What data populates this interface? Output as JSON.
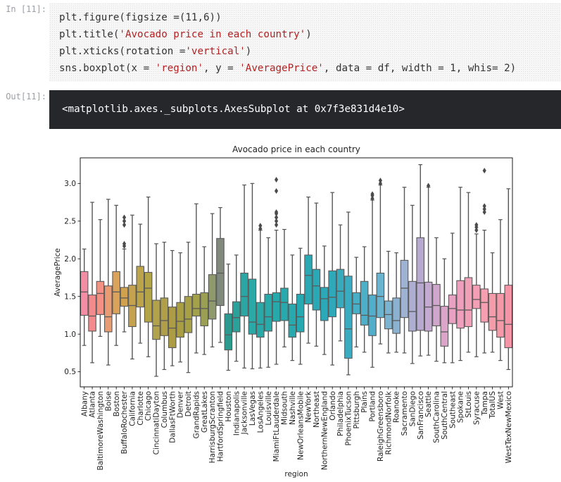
{
  "notebook": {
    "in_prompt": "In [11]:",
    "out_prompt": "Out[11]:",
    "code_lines": [
      "plt.figure(figsize =(11,6))",
      "plt.title('Avocado price in each country')",
      "plt.xticks(rotation ='vertical')",
      "sns.boxplot(x = 'region', y = 'AveragePrice', data = df, width = 1, whis= 2)"
    ],
    "output_text": "<matplotlib.axes._subplots.AxesSubplot at 0x7f3e831d4e10>"
  },
  "chart_data": {
    "type": "box",
    "title": "Avocado price in each country",
    "xlabel": "region",
    "ylabel": "AveragePrice",
    "ylim": [
      0.3,
      3.34
    ],
    "yticks": [
      0.5,
      1.0,
      1.5,
      2.0,
      2.5,
      3.0
    ],
    "grid": false,
    "categories": [
      "Albany",
      "Atlanta",
      "BaltimoreWashington",
      "Boise",
      "Boston",
      "BuffaloRochester",
      "California",
      "Charlotte",
      "Chicago",
      "CincinnatiDayton",
      "Columbus",
      "DallasFtWorth",
      "Denver",
      "Detroit",
      "GrandRapids",
      "GreatLakes",
      "HarrisburgScranton",
      "HartfordSpringfield",
      "Houston",
      "Indianapolis",
      "Jacksonville",
      "LasVegas",
      "LosAngeles",
      "Louisville",
      "MiamiFtLauderdale",
      "Midsouth",
      "Nashville",
      "NewOrleansMobile",
      "NewYork",
      "Northeast",
      "NorthernNewEngland",
      "Orlando",
      "Philadelphia",
      "PhoenixTucson",
      "Pittsburgh",
      "Plains",
      "Portland",
      "RaleighGreensboro",
      "RichmondNorfolk",
      "Roanoke",
      "Sacramento",
      "SanDiego",
      "SanFrancisco",
      "Seattle",
      "SouthCarolina",
      "SouthCentral",
      "Southeast",
      "Spokane",
      "StLouis",
      "Syracuse",
      "Tampa",
      "TotalUS",
      "West",
      "WestTexNewMexico"
    ],
    "colors": [
      "#f48ca4",
      "#f58a8d",
      "#f39185",
      "#e99b73",
      "#dba25a",
      "#d0a24f",
      "#c5a24e",
      "#bca44b",
      "#b3a448",
      "#b2a24b",
      "#b09f48",
      "#ad9c46",
      "#aa9e43",
      "#a8a044",
      "#a3a14a",
      "#9b9f54",
      "#8f9a6c",
      "#81897c",
      "#2c9a8e",
      "#28a29a",
      "#2aa7a4",
      "#2aa9a6",
      "#29a8a8",
      "#28a9aa",
      "#27a9ab",
      "#27a9ad",
      "#27a9ae",
      "#26a9b0",
      "#2aa9b4",
      "#29a8b6",
      "#2ca9b8",
      "#2ea9ba",
      "#35abbd",
      "#3aacc2",
      "#47b0c6",
      "#4cb0c9",
      "#52afcc",
      "#6ab4cf",
      "#7cb3d1",
      "#8ab2d0",
      "#9fb2d2",
      "#aeaed2",
      "#b7a9d0",
      "#c4a9d0",
      "#d0a6cd",
      "#dca4c8",
      "#e8a1c2",
      "#ef9fbc",
      "#f29fb8",
      "#f49fb5",
      "#f59fb1",
      "#f59cab",
      "#f598a7",
      "#f595a8"
    ],
    "series": [
      {
        "name": "Albany",
        "whislo": 0.85,
        "q1": 1.25,
        "median": 1.56,
        "q3": 1.83,
        "whishi": 2.13,
        "fliers": []
      },
      {
        "name": "Atlanta",
        "whislo": 0.62,
        "q1": 1.04,
        "median": 1.24,
        "q3": 1.52,
        "whishi": 2.75,
        "fliers": []
      },
      {
        "name": "BaltimoreWashington",
        "whislo": 0.97,
        "q1": 1.26,
        "median": 1.54,
        "q3": 1.7,
        "whishi": 2.52,
        "fliers": []
      },
      {
        "name": "Boise",
        "whislo": 0.59,
        "q1": 1.03,
        "median": 1.23,
        "q3": 1.64,
        "whishi": 2.79,
        "fliers": []
      },
      {
        "name": "Boston",
        "whislo": 0.85,
        "q1": 1.27,
        "median": 1.56,
        "q3": 1.83,
        "whishi": 2.71,
        "fliers": []
      },
      {
        "name": "BuffaloRochester",
        "whislo": 1.03,
        "q1": 1.37,
        "median": 1.48,
        "q3": 1.62,
        "whishi": 2.13,
        "fliers": [
          2.17,
          2.2,
          2.45,
          2.5,
          2.55
        ]
      },
      {
        "name": "California",
        "whislo": 0.67,
        "q1": 1.1,
        "median": 1.38,
        "q3": 1.65,
        "whishi": 2.58,
        "fliers": []
      },
      {
        "name": "Charlotte",
        "whislo": 0.88,
        "q1": 1.36,
        "median": 1.56,
        "q3": 1.9,
        "whishi": 2.46,
        "fliers": []
      },
      {
        "name": "Chicago",
        "whislo": 0.7,
        "q1": 1.16,
        "median": 1.61,
        "q3": 1.82,
        "whishi": 2.82,
        "fliers": []
      },
      {
        "name": "CincinnatiDayton",
        "whislo": 0.44,
        "q1": 0.93,
        "median": 1.11,
        "q3": 1.45,
        "whishi": 2.2,
        "fliers": []
      },
      {
        "name": "Columbus",
        "whislo": 0.53,
        "q1": 0.98,
        "median": 1.18,
        "q3": 1.48,
        "whishi": 2.22,
        "fliers": []
      },
      {
        "name": "DallasFtWorth",
        "whislo": 0.58,
        "q1": 0.82,
        "median": 1.08,
        "q3": 1.36,
        "whishi": 2.11,
        "fliers": []
      },
      {
        "name": "Denver",
        "whislo": 0.63,
        "q1": 0.96,
        "median": 1.17,
        "q3": 1.42,
        "whishi": 2.08,
        "fliers": []
      },
      {
        "name": "Detroit",
        "whislo": 0.49,
        "q1": 1.02,
        "median": 1.2,
        "q3": 1.5,
        "whishi": 2.22,
        "fliers": []
      },
      {
        "name": "GrandRapids",
        "whislo": 0.75,
        "q1": 1.24,
        "median": 1.34,
        "q3": 1.53,
        "whishi": 2.73,
        "fliers": []
      },
      {
        "name": "GreatLakes",
        "whislo": 0.73,
        "q1": 1.11,
        "median": 1.34,
        "q3": 1.55,
        "whishi": 2.16,
        "fliers": []
      },
      {
        "name": "HarrisburgScranton",
        "whislo": 0.83,
        "q1": 1.2,
        "median": 1.44,
        "q3": 1.79,
        "whishi": 2.6,
        "fliers": []
      },
      {
        "name": "HartfordSpringfield",
        "whislo": 0.89,
        "q1": 1.38,
        "median": 1.81,
        "q3": 2.27,
        "whishi": 2.68,
        "fliers": []
      },
      {
        "name": "Houston",
        "whislo": 0.52,
        "q1": 0.79,
        "median": 0.99,
        "q3": 1.27,
        "whishi": 1.93,
        "fliers": []
      },
      {
        "name": "Indianapolis",
        "whislo": 0.64,
        "q1": 1.03,
        "median": 1.22,
        "q3": 1.43,
        "whishi": 2.05,
        "fliers": []
      },
      {
        "name": "Jacksonville",
        "whislo": 0.55,
        "q1": 1.24,
        "median": 1.5,
        "q3": 1.81,
        "whishi": 2.98,
        "fliers": []
      },
      {
        "name": "LasVegas",
        "whislo": 0.54,
        "q1": 1.0,
        "median": 1.16,
        "q3": 1.73,
        "whishi": 3.0,
        "fliers": []
      },
      {
        "name": "LosAngeles",
        "whislo": 0.55,
        "q1": 0.96,
        "median": 1.13,
        "q3": 1.42,
        "whishi": 2.38,
        "fliers": [
          2.4,
          2.44
        ]
      },
      {
        "name": "Louisville",
        "whislo": 0.56,
        "q1": 1.04,
        "median": 1.23,
        "q3": 1.53,
        "whishi": 2.28,
        "fliers": []
      },
      {
        "name": "MiamiFtLauderdale",
        "whislo": 0.6,
        "q1": 1.17,
        "median": 1.43,
        "q3": 1.55,
        "whishi": 2.38,
        "fliers": [
          2.45,
          2.5,
          2.55,
          2.6,
          2.62,
          2.9,
          3.05
        ]
      },
      {
        "name": "Midsouth",
        "whislo": 0.83,
        "q1": 1.18,
        "median": 1.42,
        "q3": 1.61,
        "whishi": 2.39,
        "fliers": []
      },
      {
        "name": "Nashville",
        "whislo": 0.65,
        "q1": 0.96,
        "median": 1.12,
        "q3": 1.4,
        "whishi": 2.05,
        "fliers": []
      },
      {
        "name": "NewOrleansMobile",
        "whislo": 0.6,
        "q1": 1.03,
        "median": 1.23,
        "q3": 1.53,
        "whishi": 2.14,
        "fliers": []
      },
      {
        "name": "NewYork",
        "whislo": 0.88,
        "q1": 1.4,
        "median": 1.78,
        "q3": 2.05,
        "whishi": 2.82,
        "fliers": []
      },
      {
        "name": "Northeast",
        "whislo": 0.84,
        "q1": 1.32,
        "median": 1.64,
        "q3": 1.86,
        "whishi": 2.74,
        "fliers": []
      },
      {
        "name": "NorthernNewEngland",
        "whislo": 0.73,
        "q1": 1.18,
        "median": 1.47,
        "q3": 1.62,
        "whishi": 2.17,
        "fliers": []
      },
      {
        "name": "Orlando",
        "whislo": 0.59,
        "q1": 1.23,
        "median": 1.49,
        "q3": 1.84,
        "whishi": 2.88,
        "fliers": []
      },
      {
        "name": "Philadelphia",
        "whislo": 0.91,
        "q1": 1.35,
        "median": 1.57,
        "q3": 1.86,
        "whishi": 2.45,
        "fliers": []
      },
      {
        "name": "PhoenixTucson",
        "whislo": 0.46,
        "q1": 0.68,
        "median": 1.07,
        "q3": 1.77,
        "whishi": 2.62,
        "fliers": []
      },
      {
        "name": "Pittsburgh",
        "whislo": 0.83,
        "q1": 1.27,
        "median": 1.4,
        "q3": 1.55,
        "whishi": 2.02,
        "fliers": []
      },
      {
        "name": "Plains",
        "whislo": 0.76,
        "q1": 1.12,
        "median": 1.25,
        "q3": 1.7,
        "whishi": 2.16,
        "fliers": []
      },
      {
        "name": "Portland",
        "whislo": 0.56,
        "q1": 0.98,
        "median": 1.24,
        "q3": 1.52,
        "whishi": 2.78,
        "fliers": [
          2.8,
          2.84,
          2.86
        ]
      },
      {
        "name": "RaleighGreensboro",
        "whislo": 0.87,
        "q1": 1.22,
        "median": 1.5,
        "q3": 1.81,
        "whishi": 2.98,
        "fliers": [
          3.0,
          3.04
        ]
      },
      {
        "name": "RichmondNorfolk",
        "whislo": 0.75,
        "q1": 1.07,
        "median": 1.26,
        "q3": 1.44,
        "whishi": 2.1,
        "fliers": []
      },
      {
        "name": "Roanoke",
        "whislo": 0.76,
        "q1": 1.01,
        "median": 1.18,
        "q3": 1.48,
        "whishi": 2.08,
        "fliers": []
      },
      {
        "name": "Sacramento",
        "whislo": 0.75,
        "q1": 1.22,
        "median": 1.61,
        "q3": 1.98,
        "whishi": 2.95,
        "fliers": []
      },
      {
        "name": "SanDiego",
        "whislo": 0.61,
        "q1": 1.04,
        "median": 1.3,
        "q3": 1.7,
        "whishi": 2.71,
        "fliers": []
      },
      {
        "name": "SanFrancisco",
        "whislo": 0.71,
        "q1": 1.05,
        "median": 1.68,
        "q3": 2.28,
        "whishi": 3.25,
        "fliers": []
      },
      {
        "name": "Seattle",
        "whislo": 0.72,
        "q1": 1.04,
        "median": 1.36,
        "q3": 1.69,
        "whishi": 2.95,
        "fliers": [
          2.97
        ]
      },
      {
        "name": "SouthCarolina",
        "whislo": 0.64,
        "q1": 1.11,
        "median": 1.38,
        "q3": 1.66,
        "whishi": 2.28,
        "fliers": []
      },
      {
        "name": "SouthCentral",
        "whislo": 0.62,
        "q1": 0.84,
        "median": 1.03,
        "q3": 1.37,
        "whishi": 2.0,
        "fliers": []
      },
      {
        "name": "Southeast",
        "whislo": 0.62,
        "q1": 1.14,
        "median": 1.34,
        "q3": 1.52,
        "whishi": 2.34,
        "fliers": []
      },
      {
        "name": "Spokane",
        "whislo": 0.65,
        "q1": 1.08,
        "median": 1.32,
        "q3": 1.71,
        "whishi": 2.95,
        "fliers": []
      },
      {
        "name": "StLouis",
        "whislo": 0.76,
        "q1": 1.1,
        "median": 1.32,
        "q3": 1.75,
        "whishi": 2.88,
        "fliers": []
      },
      {
        "name": "Syracuse",
        "whislo": 0.7,
        "q1": 1.34,
        "median": 1.46,
        "q3": 1.65,
        "whishi": 2.33,
        "fliers": [
          2.38,
          2.42,
          2.45
        ]
      },
      {
        "name": "Tampa",
        "whislo": 0.75,
        "q1": 1.16,
        "median": 1.42,
        "q3": 1.6,
        "whishi": 2.38,
        "fliers": [
          2.62,
          2.66,
          2.7,
          3.17
        ]
      },
      {
        "name": "TotalUS",
        "whislo": 0.76,
        "q1": 1.05,
        "median": 1.23,
        "q3": 1.54,
        "whishi": 2.08,
        "fliers": []
      },
      {
        "name": "West",
        "whislo": 0.65,
        "q1": 0.96,
        "median": 1.18,
        "q3": 1.54,
        "whishi": 2.52,
        "fliers": []
      },
      {
        "name": "WestTexNewMexico",
        "whislo": 0.53,
        "q1": 0.82,
        "median": 1.13,
        "q3": 1.65,
        "whishi": 2.93,
        "fliers": []
      }
    ]
  }
}
